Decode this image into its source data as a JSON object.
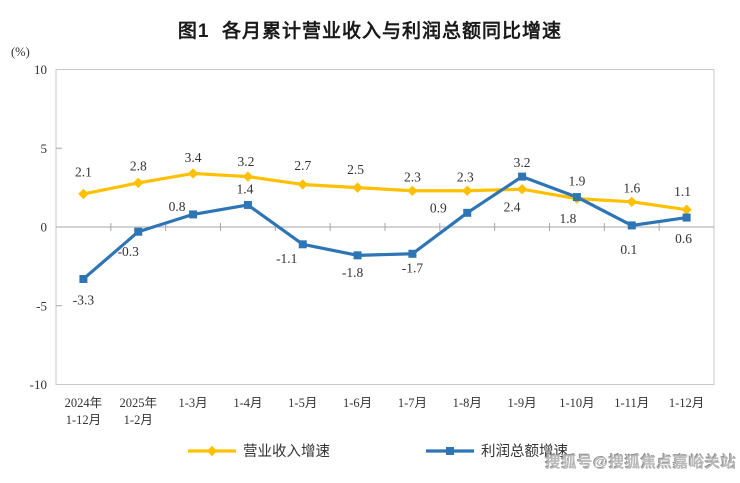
{
  "title": "图1  各月累计营业收入与利润总额同比增速",
  "watermark": {
    "text": "搜狐号@搜狐焦点嘉峪关站"
  },
  "chart_data": {
    "type": "line",
    "title": "图1  各月累计营业收入与利润总额同比增速",
    "unit": "(%)",
    "categories": [
      "2024年\n1-12月",
      "2025年\n1-2月",
      "1-3月",
      "1-4月",
      "1-5月",
      "1-6月",
      "1-7月",
      "1-8月",
      "1-9月",
      "1-10月",
      "1-11月",
      "1-12月"
    ],
    "ylim": [
      -10,
      10
    ],
    "yticks": [
      10,
      5,
      0,
      -5,
      -10
    ],
    "grid": "zero-line-only",
    "legend_position": "bottom",
    "series": [
      {
        "name": "营业收入增速",
        "color": "#FFC000",
        "marker": "diamond",
        "values": [
          2.1,
          2.8,
          3.4,
          3.2,
          2.7,
          2.5,
          2.3,
          2.3,
          2.4,
          1.8,
          1.6,
          1.1
        ],
        "label_offsets": [
          [
            0,
            -22
          ],
          [
            0,
            -17
          ],
          [
            0,
            -16
          ],
          [
            -2,
            -15
          ],
          [
            0,
            -19
          ],
          [
            -2,
            -18
          ],
          [
            0,
            -14
          ],
          [
            -2,
            -14
          ],
          [
            -10,
            18
          ],
          [
            -9,
            20
          ],
          [
            0,
            -14
          ],
          [
            -4,
            -18
          ]
        ]
      },
      {
        "name": "利润总额增速",
        "color": "#2E75B6",
        "marker": "square",
        "values": [
          -3.3,
          -0.3,
          0.8,
          1.4,
          -1.1,
          -1.8,
          -1.7,
          0.9,
          3.2,
          1.9,
          0.1,
          0.6
        ],
        "label_offsets": [
          [
            0,
            21
          ],
          [
            -10,
            20
          ],
          [
            -16,
            -8
          ],
          [
            -3,
            -16
          ],
          [
            -16,
            14
          ],
          [
            -5,
            17
          ],
          [
            0,
            14
          ],
          [
            -29,
            -5
          ],
          [
            0,
            -14
          ],
          [
            0,
            -16
          ],
          [
            -3,
            24
          ],
          [
            -3,
            21
          ]
        ]
      }
    ],
    "colors": {
      "plot_border": "#c9c9c9",
      "axis_line": "#a6a6a6",
      "tick_text": "#333333",
      "data_label_text": "#333333"
    }
  }
}
